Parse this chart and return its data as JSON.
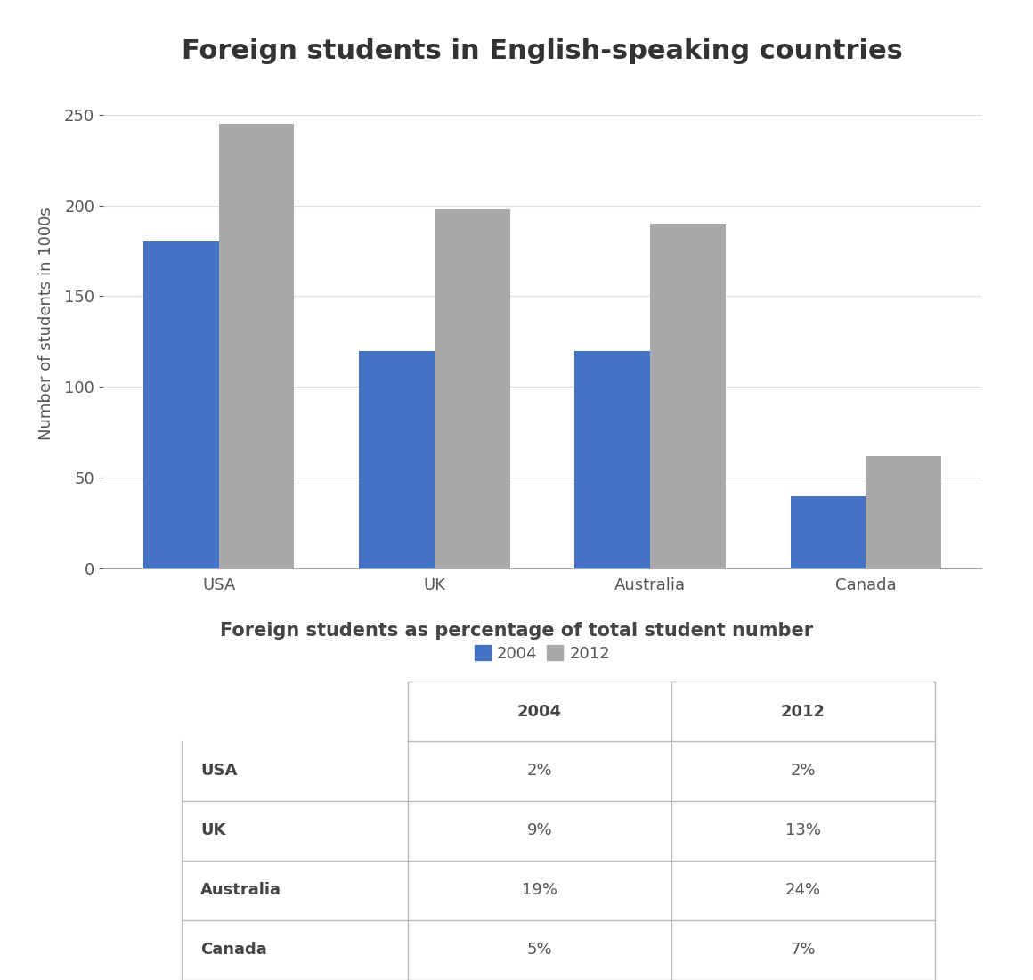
{
  "title": "Foreign students in English-speaking countries",
  "table_title": "Foreign students as percentage of total student number",
  "categories": [
    "USA",
    "UK",
    "Australia",
    "Canada"
  ],
  "values_2004": [
    180,
    120,
    120,
    40
  ],
  "values_2012": [
    245,
    198,
    190,
    62
  ],
  "color_2004": "#4472C4",
  "color_2012": "#A9A9A9",
  "ylabel": "Number of students in 1000s",
  "ylim": [
    0,
    270
  ],
  "yticks": [
    0,
    50,
    100,
    150,
    200,
    250
  ],
  "legend_labels": [
    "2004",
    "2012"
  ],
  "table_headers": [
    "",
    "2004",
    "2012"
  ],
  "table_rows": [
    [
      "USA",
      "2%",
      "2%"
    ],
    [
      "UK",
      "9%",
      "13%"
    ],
    [
      "Australia",
      "19%",
      "24%"
    ],
    [
      "Canada",
      "5%",
      "7%"
    ]
  ],
  "bar_width": 0.35,
  "background_color": "#FFFFFF",
  "title_fontsize": 22,
  "axis_label_fontsize": 13,
  "tick_fontsize": 13,
  "legend_fontsize": 13,
  "table_title_fontsize": 15,
  "table_fontsize": 13
}
